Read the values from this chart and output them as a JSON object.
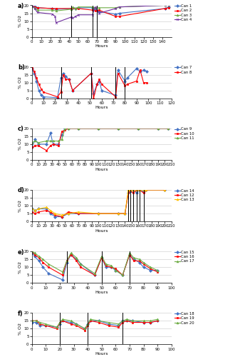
{
  "subplots": [
    {
      "label": "a)",
      "xlim": [
        0,
        150
      ],
      "xticks": [
        0,
        10,
        20,
        30,
        40,
        50,
        60,
        70,
        80,
        90,
        100,
        110,
        120,
        130,
        140
      ],
      "ylim": [
        0,
        20
      ],
      "yticks": [
        0,
        5,
        10,
        15,
        20
      ],
      "ylabel": "% O2",
      "xlabel": "Hours",
      "vlines": [
        42,
        65,
        70
      ],
      "series": [
        {
          "name": "Can 1",
          "color": "#4472C4",
          "marker": "D",
          "x": [
            0,
            3,
            6,
            22,
            26,
            42,
            44,
            47,
            50,
            65,
            68,
            72,
            90,
            94,
            143,
            147
          ],
          "y": [
            20,
            19.5,
            18.5,
            18,
            17.5,
            18,
            18.5,
            18,
            18.5,
            18.5,
            17.5,
            16,
            14.5,
            15,
            18,
            19
          ]
        },
        {
          "name": "Can 2",
          "color": "#FF0000",
          "marker": "s",
          "x": [
            0,
            3,
            6,
            22,
            26,
            42,
            44,
            47,
            50,
            65,
            68,
            72,
            90,
            94,
            143,
            147
          ],
          "y": [
            20,
            19,
            18.5,
            18,
            18,
            18,
            18.5,
            18,
            18,
            17,
            16.5,
            17,
            13,
            13,
            18,
            18.5
          ]
        },
        {
          "name": "Can 3",
          "color": "#70AD47",
          "marker": "^",
          "x": [
            0,
            3,
            6,
            22,
            26,
            42,
            44,
            47,
            50,
            65,
            68,
            72,
            90,
            94,
            143,
            147
          ],
          "y": [
            19.5,
            18.5,
            17,
            17,
            16.5,
            17.5,
            19,
            18,
            19,
            19,
            18.5,
            18.5,
            18.5,
            19,
            20,
            20
          ]
        },
        {
          "name": "Can 4",
          "color": "#7030A0",
          "marker": "x",
          "x": [
            0,
            3,
            6,
            22,
            25,
            26,
            42,
            44,
            47,
            50,
            65,
            68,
            72,
            90,
            94,
            143,
            147
          ],
          "y": [
            20,
            18,
            15.5,
            14.5,
            13,
            9,
            12.5,
            12,
            13,
            14,
            14,
            19,
            15,
            18,
            19,
            20,
            20
          ]
        }
      ]
    },
    {
      "label": "b)",
      "xlim": [
        0,
        120
      ],
      "xticks": [
        0,
        10,
        20,
        30,
        40,
        50,
        60,
        70,
        80,
        90,
        100,
        110,
        120
      ],
      "ylim": [
        0,
        20
      ],
      "yticks": [
        0,
        5,
        10,
        15,
        20
      ],
      "ylabel": "% O2",
      "xlabel": "Hours",
      "vlines": [
        25,
        51,
        72,
        80
      ],
      "series": [
        {
          "name": "Can 7",
          "color": "#4472C4",
          "marker": "D",
          "x": [
            0,
            2,
            4,
            6,
            8,
            10,
            22,
            25,
            27,
            29,
            32,
            35,
            51,
            53,
            56,
            58,
            60,
            72,
            74,
            80,
            82,
            90,
            93,
            96,
            99
          ],
          "y": [
            19,
            16,
            11,
            5,
            2,
            1,
            0.5,
            13,
            16,
            14,
            12,
            5,
            16,
            3,
            9,
            11,
            5,
            2,
            18,
            11,
            13,
            19,
            17,
            18,
            17
          ]
        },
        {
          "name": "Can 8",
          "color": "#FF0000",
          "marker": "s",
          "x": [
            0,
            2,
            4,
            6,
            8,
            10,
            22,
            25,
            27,
            29,
            32,
            35,
            51,
            53,
            56,
            58,
            60,
            72,
            74,
            80,
            82,
            90,
            93,
            96,
            99
          ],
          "y": [
            20,
            17,
            13,
            9,
            6,
            4,
            1,
            4,
            15,
            12,
            12,
            5,
            16,
            0,
            9,
            12,
            9,
            1,
            16,
            8,
            9,
            11,
            18,
            10,
            10
          ]
        }
      ]
    },
    {
      "label": "c)",
      "xlim": [
        0,
        210
      ],
      "xticks": [
        0,
        10,
        20,
        30,
        40,
        50,
        60,
        70,
        80,
        90,
        100,
        110,
        120,
        130,
        140,
        150,
        160,
        170,
        180,
        190,
        200,
        210
      ],
      "ylim": [
        0,
        20
      ],
      "yticks": [
        0,
        5,
        10,
        15,
        20
      ],
      "ylabel": "% O2",
      "xlabel": "Hours",
      "vlines": [],
      "series": [
        {
          "name": "Can 9",
          "color": "#4472C4",
          "marker": "D",
          "x": [
            0,
            5,
            10,
            22,
            28,
            32,
            40,
            45,
            50,
            55,
            70,
            100,
            130,
            160,
            190,
            205
          ],
          "y": [
            8,
            13,
            10,
            10,
            17,
            10,
            10,
            16,
            20,
            20,
            20,
            20,
            20,
            20,
            20,
            20
          ]
        },
        {
          "name": "Can 10",
          "color": "#FF0000",
          "marker": "s",
          "x": [
            0,
            5,
            10,
            22,
            28,
            32,
            40,
            45,
            50,
            55,
            70,
            100,
            130,
            160,
            190,
            205
          ],
          "y": [
            8,
            9,
            9,
            6,
            9,
            10,
            9,
            18,
            19,
            20,
            20,
            20,
            20,
            20,
            20,
            20
          ]
        },
        {
          "name": "Can 11",
          "color": "#70AD47",
          "marker": "^",
          "x": [
            0,
            5,
            10,
            22,
            28,
            32,
            40,
            45,
            50,
            55,
            70,
            100,
            130,
            160,
            190,
            205
          ],
          "y": [
            11,
            12,
            11,
            12,
            12,
            12,
            12,
            13,
            20,
            20,
            20,
            20,
            20,
            20,
            20,
            20
          ]
        }
      ]
    },
    {
      "label": "d)",
      "xlim": [
        0,
        210
      ],
      "xticks": [
        0,
        10,
        20,
        30,
        40,
        50,
        60,
        70,
        80,
        90,
        100,
        110,
        120,
        130,
        140,
        150,
        160,
        170,
        180,
        190,
        200,
        210
      ],
      "ylim": [
        0,
        20
      ],
      "yticks": [
        0,
        5,
        10,
        15,
        20
      ],
      "ylabel": "% O2",
      "xlabel": "Hours",
      "vlines": [
        145,
        148,
        152,
        158,
        162,
        168
      ],
      "series": [
        {
          "name": "Can 14",
          "color": "#4472C4",
          "marker": "D",
          "x": [
            0,
            5,
            10,
            22,
            28,
            35,
            45,
            55,
            70,
            100,
            130,
            140,
            145,
            148,
            152,
            158,
            162,
            168,
            172,
            200
          ],
          "y": [
            8,
            7,
            8,
            8,
            5,
            3,
            3,
            5,
            5,
            5,
            5,
            5,
            18,
            19,
            20,
            18,
            20,
            19,
            20,
            20
          ]
        },
        {
          "name": "Can 12",
          "color": "#FF0000",
          "marker": "s",
          "x": [
            0,
            5,
            10,
            22,
            28,
            35,
            45,
            55,
            70,
            100,
            130,
            140,
            145,
            148,
            152,
            158,
            162,
            168,
            172,
            200
          ],
          "y": [
            6,
            5,
            6,
            7,
            6,
            4,
            3,
            6,
            5,
            5,
            5,
            5,
            18,
            20,
            18,
            20,
            20,
            18,
            20,
            20
          ]
        },
        {
          "name": "Can 13",
          "color": "#FFC000",
          "marker": "^",
          "x": [
            0,
            5,
            10,
            22,
            28,
            35,
            45,
            55,
            70,
            100,
            130,
            140,
            145,
            148,
            152,
            158,
            162,
            168,
            172,
            200
          ],
          "y": [
            8,
            7,
            8,
            9,
            7,
            5,
            4,
            5,
            6,
            5,
            5,
            5,
            20,
            20,
            20,
            20,
            20,
            20,
            20,
            20
          ]
        }
      ]
    },
    {
      "label": "e)",
      "xlim": [
        0,
        100
      ],
      "xticks": [
        0,
        10,
        20,
        30,
        40,
        50,
        60,
        70,
        80,
        90,
        100
      ],
      "ylim": [
        0,
        20
      ],
      "yticks": [
        0,
        5,
        10,
        15,
        20
      ],
      "ylabel": "% O2",
      "xlabel": "Hours",
      "vlines": [
        25,
        50,
        70
      ],
      "series": [
        {
          "name": "Can 15",
          "color": "#4472C4",
          "marker": "D",
          "x": [
            0,
            2,
            5,
            8,
            12,
            22,
            25,
            28,
            32,
            35,
            45,
            50,
            53,
            57,
            60,
            65,
            70,
            73,
            77,
            80,
            85,
            90
          ],
          "y": [
            19,
            17,
            14,
            10,
            6,
            2,
            13,
            18,
            15,
            12,
            5,
            16,
            10,
            10,
            8,
            5,
            18,
            15,
            13,
            10,
            8,
            8
          ]
        },
        {
          "name": "Can 16",
          "color": "#FF0000",
          "marker": "s",
          "x": [
            0,
            2,
            5,
            8,
            12,
            22,
            25,
            28,
            32,
            35,
            45,
            50,
            53,
            57,
            60,
            65,
            70,
            73,
            77,
            80,
            85,
            90
          ],
          "y": [
            20,
            18,
            16,
            13,
            10,
            5,
            14,
            18,
            14,
            10,
            5,
            16,
            11,
            10,
            9,
            5,
            18,
            14,
            14,
            12,
            9,
            7
          ]
        },
        {
          "name": "Can 17",
          "color": "#70AD47",
          "marker": "^",
          "x": [
            0,
            2,
            5,
            8,
            12,
            22,
            25,
            28,
            32,
            35,
            45,
            50,
            53,
            57,
            60,
            65,
            70,
            73,
            77,
            80,
            85,
            90
          ],
          "y": [
            20,
            19,
            17,
            15,
            12,
            7,
            14,
            19,
            16,
            12,
            6,
            17,
            12,
            11,
            8,
            5,
            19,
            16,
            15,
            13,
            10,
            8
          ]
        }
      ]
    },
    {
      "label": "f)",
      "xlim": [
        0,
        100
      ],
      "xticks": [
        0,
        10,
        20,
        30,
        40,
        50,
        60,
        70,
        80,
        90,
        100
      ],
      "ylim": [
        0,
        20
      ],
      "yticks": [
        0,
        5,
        10,
        15,
        20
      ],
      "ylabel": "% O2",
      "xlabel": "Hours",
      "vlines": [
        20,
        40,
        65
      ],
      "series": [
        {
          "name": "Can 18",
          "color": "#4472C4",
          "marker": "D",
          "x": [
            0,
            3,
            6,
            10,
            18,
            20,
            22,
            28,
            32,
            38,
            40,
            42,
            48,
            55,
            62,
            65,
            68,
            72,
            80,
            85,
            90
          ],
          "y": [
            14,
            14,
            12,
            12,
            11,
            13,
            15,
            14,
            13,
            10,
            13,
            15,
            15,
            13,
            12,
            15,
            15,
            15,
            14,
            14,
            15
          ]
        },
        {
          "name": "Can 19",
          "color": "#FF0000",
          "marker": "s",
          "x": [
            0,
            3,
            6,
            10,
            18,
            20,
            22,
            28,
            32,
            38,
            40,
            42,
            48,
            55,
            62,
            65,
            68,
            72,
            80,
            85,
            90
          ],
          "y": [
            15,
            15,
            13,
            12,
            10,
            14,
            15,
            13,
            12,
            9,
            12,
            15,
            14,
            12,
            11,
            14,
            15,
            14,
            14,
            14,
            15
          ]
        },
        {
          "name": "Can 20",
          "color": "#70AD47",
          "marker": "^",
          "x": [
            0,
            3,
            6,
            10,
            18,
            20,
            22,
            28,
            32,
            38,
            40,
            42,
            48,
            55,
            62,
            65,
            68,
            72,
            80,
            85,
            90
          ],
          "y": [
            15,
            15,
            14,
            13,
            11,
            14,
            16,
            15,
            13,
            10,
            13,
            16,
            15,
            14,
            13,
            15,
            16,
            15,
            15,
            15,
            16
          ]
        }
      ]
    }
  ]
}
